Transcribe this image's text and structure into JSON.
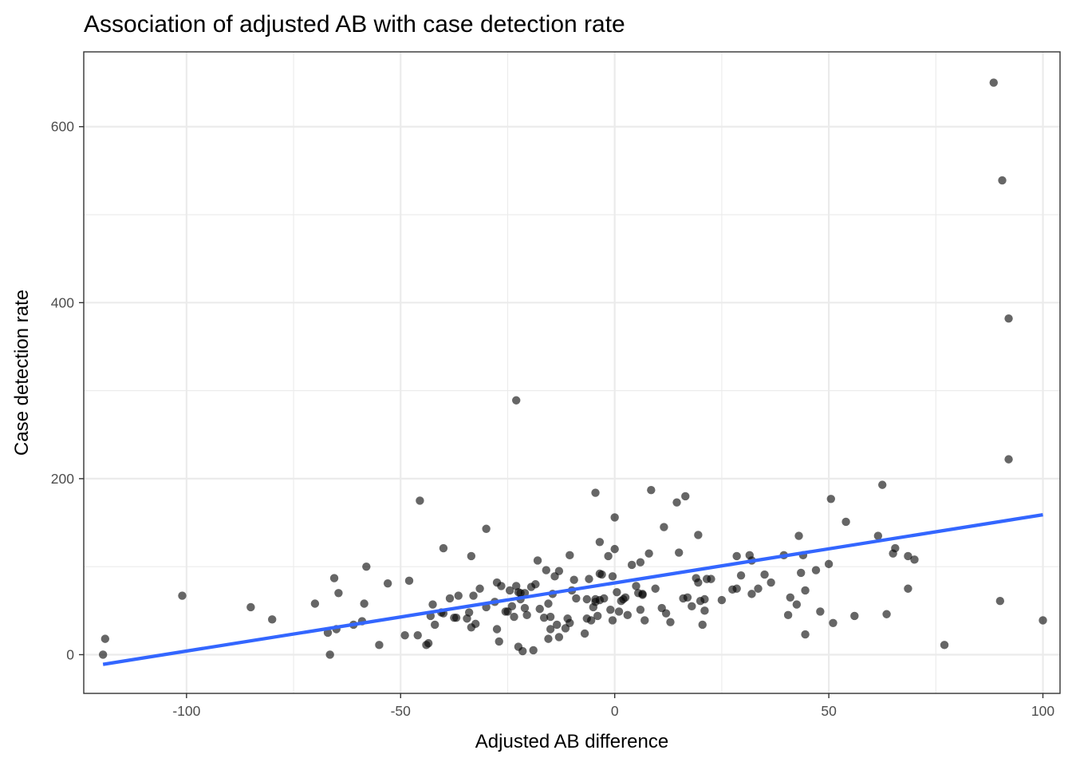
{
  "chart_data": {
    "type": "scatter",
    "title": "Association of adjusted AB with case detection rate",
    "xlabel": "Adjusted AB difference",
    "ylabel": "Case detection rate",
    "xlim": [
      -124,
      104
    ],
    "ylim": [
      -44,
      685
    ],
    "x_ticks": [
      -100,
      -50,
      0,
      50,
      100
    ],
    "x_tick_labels": [
      "-100",
      "-50",
      "0",
      "50",
      "100"
    ],
    "y_ticks": [
      0,
      200,
      400,
      600
    ],
    "y_tick_labels": [
      "0",
      "200",
      "400",
      "600"
    ],
    "grid": true,
    "legend": "none",
    "colors": {
      "points": "#000000",
      "trend": "#3366ff",
      "grid": "#ebebeb",
      "panel_border": "#333333"
    },
    "trend_line": {
      "method": "linear",
      "x": [
        -119.5,
        100
      ],
      "y": [
        -11,
        159
      ]
    },
    "points": [
      {
        "x": -119.5,
        "y": 0
      },
      {
        "x": -119,
        "y": 18
      },
      {
        "x": -101,
        "y": 67
      },
      {
        "x": -85,
        "y": 54
      },
      {
        "x": -80,
        "y": 40
      },
      {
        "x": -70,
        "y": 58
      },
      {
        "x": -67,
        "y": 25
      },
      {
        "x": -66.5,
        "y": 0
      },
      {
        "x": -65.5,
        "y": 87
      },
      {
        "x": -65,
        "y": 29
      },
      {
        "x": -64.5,
        "y": 70
      },
      {
        "x": -61,
        "y": 34
      },
      {
        "x": -59,
        "y": 38
      },
      {
        "x": -58.5,
        "y": 58
      },
      {
        "x": -58,
        "y": 100
      },
      {
        "x": -55,
        "y": 11
      },
      {
        "x": -53,
        "y": 81
      },
      {
        "x": -49,
        "y": 22
      },
      {
        "x": -48,
        "y": 84
      },
      {
        "x": -46,
        "y": 22
      },
      {
        "x": -45.5,
        "y": 175
      },
      {
        "x": -44,
        "y": 11
      },
      {
        "x": -43.5,
        "y": 13
      },
      {
        "x": -43,
        "y": 44
      },
      {
        "x": -42.5,
        "y": 57
      },
      {
        "x": -42,
        "y": 34
      },
      {
        "x": -40.5,
        "y": 48
      },
      {
        "x": -40,
        "y": 47
      },
      {
        "x": -40,
        "y": 121
      },
      {
        "x": -38.5,
        "y": 64
      },
      {
        "x": -37.5,
        "y": 42
      },
      {
        "x": -37,
        "y": 42
      },
      {
        "x": -36.5,
        "y": 67
      },
      {
        "x": -34.5,
        "y": 41
      },
      {
        "x": -34,
        "y": 48
      },
      {
        "x": -33.5,
        "y": 112
      },
      {
        "x": -33.5,
        "y": 31
      },
      {
        "x": -33,
        "y": 67
      },
      {
        "x": -32.5,
        "y": 35
      },
      {
        "x": -31.5,
        "y": 75
      },
      {
        "x": -30,
        "y": 143
      },
      {
        "x": -30,
        "y": 54
      },
      {
        "x": -28,
        "y": 60
      },
      {
        "x": -27.5,
        "y": 82
      },
      {
        "x": -27.5,
        "y": 29
      },
      {
        "x": -27,
        "y": 15
      },
      {
        "x": -26.5,
        "y": 78
      },
      {
        "x": -25.5,
        "y": 49
      },
      {
        "x": -25,
        "y": 49
      },
      {
        "x": -24.5,
        "y": 73
      },
      {
        "x": -24,
        "y": 55
      },
      {
        "x": -23.5,
        "y": 43
      },
      {
        "x": -23,
        "y": 78
      },
      {
        "x": -23,
        "y": 289
      },
      {
        "x": -22.5,
        "y": 71
      },
      {
        "x": -22.5,
        "y": 9
      },
      {
        "x": -22,
        "y": 63
      },
      {
        "x": -22,
        "y": 70
      },
      {
        "x": -21.5,
        "y": 4
      },
      {
        "x": -21,
        "y": 70
      },
      {
        "x": -21,
        "y": 53
      },
      {
        "x": -20.5,
        "y": 45
      },
      {
        "x": -19.5,
        "y": 77
      },
      {
        "x": -19,
        "y": 5
      },
      {
        "x": -18.5,
        "y": 80
      },
      {
        "x": -18,
        "y": 107
      },
      {
        "x": -17.5,
        "y": 52
      },
      {
        "x": -16.5,
        "y": 42
      },
      {
        "x": -16,
        "y": 96
      },
      {
        "x": -15.5,
        "y": 18
      },
      {
        "x": -15.5,
        "y": 58
      },
      {
        "x": -15,
        "y": 29
      },
      {
        "x": -15,
        "y": 43
      },
      {
        "x": -14.5,
        "y": 69
      },
      {
        "x": -14,
        "y": 89
      },
      {
        "x": -13.5,
        "y": 34
      },
      {
        "x": -13,
        "y": 20
      },
      {
        "x": -13,
        "y": 95
      },
      {
        "x": -11.5,
        "y": 30
      },
      {
        "x": -11,
        "y": 41
      },
      {
        "x": -10.5,
        "y": 36
      },
      {
        "x": -10.5,
        "y": 113
      },
      {
        "x": -10,
        "y": 73
      },
      {
        "x": -9.5,
        "y": 85
      },
      {
        "x": -9,
        "y": 64
      },
      {
        "x": -7,
        "y": 24
      },
      {
        "x": -6.5,
        "y": 41
      },
      {
        "x": -6.5,
        "y": 63
      },
      {
        "x": -6,
        "y": 86
      },
      {
        "x": -5.5,
        "y": 39
      },
      {
        "x": -5,
        "y": 54
      },
      {
        "x": -4.5,
        "y": 60
      },
      {
        "x": -4.5,
        "y": 63
      },
      {
        "x": -4.5,
        "y": 184
      },
      {
        "x": -4,
        "y": 44
      },
      {
        "x": -3.5,
        "y": 62
      },
      {
        "x": -3.5,
        "y": 92
      },
      {
        "x": -3.5,
        "y": 128
      },
      {
        "x": -3,
        "y": 91
      },
      {
        "x": -2.5,
        "y": 64
      },
      {
        "x": -1.5,
        "y": 112
      },
      {
        "x": -1,
        "y": 51
      },
      {
        "x": -0.5,
        "y": 89
      },
      {
        "x": -0.5,
        "y": 39
      },
      {
        "x": 0,
        "y": 156
      },
      {
        "x": 0,
        "y": 120
      },
      {
        "x": 0.5,
        "y": 71
      },
      {
        "x": 1,
        "y": 49
      },
      {
        "x": 1.5,
        "y": 61
      },
      {
        "x": 2,
        "y": 63
      },
      {
        "x": 2.5,
        "y": 65
      },
      {
        "x": 3,
        "y": 45
      },
      {
        "x": 4,
        "y": 102
      },
      {
        "x": 5,
        "y": 78
      },
      {
        "x": 5.5,
        "y": 70
      },
      {
        "x": 6,
        "y": 51
      },
      {
        "x": 6,
        "y": 105
      },
      {
        "x": 6.5,
        "y": 69
      },
      {
        "x": 6.5,
        "y": 68
      },
      {
        "x": 7,
        "y": 39
      },
      {
        "x": 8,
        "y": 115
      },
      {
        "x": 8.5,
        "y": 187
      },
      {
        "x": 9.5,
        "y": 75
      },
      {
        "x": 11,
        "y": 53
      },
      {
        "x": 11.5,
        "y": 145
      },
      {
        "x": 12,
        "y": 47
      },
      {
        "x": 13,
        "y": 37
      },
      {
        "x": 14.5,
        "y": 173
      },
      {
        "x": 15,
        "y": 116
      },
      {
        "x": 16,
        "y": 64
      },
      {
        "x": 16.5,
        "y": 180
      },
      {
        "x": 17,
        "y": 65
      },
      {
        "x": 18,
        "y": 55
      },
      {
        "x": 19,
        "y": 87
      },
      {
        "x": 19.5,
        "y": 136
      },
      {
        "x": 19.5,
        "y": 82
      },
      {
        "x": 20,
        "y": 61
      },
      {
        "x": 20.5,
        "y": 34
      },
      {
        "x": 21,
        "y": 63
      },
      {
        "x": 21,
        "y": 50
      },
      {
        "x": 21.5,
        "y": 86
      },
      {
        "x": 22.5,
        "y": 86
      },
      {
        "x": 25,
        "y": 62
      },
      {
        "x": 27.5,
        "y": 74
      },
      {
        "x": 28.5,
        "y": 75
      },
      {
        "x": 28.5,
        "y": 112
      },
      {
        "x": 29.5,
        "y": 90
      },
      {
        "x": 31.5,
        "y": 113
      },
      {
        "x": 32,
        "y": 69
      },
      {
        "x": 32,
        "y": 107
      },
      {
        "x": 33.5,
        "y": 75
      },
      {
        "x": 35,
        "y": 91
      },
      {
        "x": 36.5,
        "y": 82
      },
      {
        "x": 39.5,
        "y": 113
      },
      {
        "x": 40.5,
        "y": 45
      },
      {
        "x": 41,
        "y": 65
      },
      {
        "x": 42.5,
        "y": 57
      },
      {
        "x": 43,
        "y": 135
      },
      {
        "x": 43.5,
        "y": 93
      },
      {
        "x": 44,
        "y": 113
      },
      {
        "x": 44.5,
        "y": 23
      },
      {
        "x": 44.5,
        "y": 73
      },
      {
        "x": 47,
        "y": 96
      },
      {
        "x": 48,
        "y": 49
      },
      {
        "x": 50,
        "y": 103
      },
      {
        "x": 50.5,
        "y": 177
      },
      {
        "x": 51,
        "y": 36
      },
      {
        "x": 54,
        "y": 151
      },
      {
        "x": 56,
        "y": 44
      },
      {
        "x": 61.5,
        "y": 135
      },
      {
        "x": 62.5,
        "y": 193
      },
      {
        "x": 63.5,
        "y": 46
      },
      {
        "x": 65,
        "y": 115
      },
      {
        "x": 65.5,
        "y": 121
      },
      {
        "x": 68.5,
        "y": 112
      },
      {
        "x": 68.5,
        "y": 75
      },
      {
        "x": 70,
        "y": 108
      },
      {
        "x": 77,
        "y": 11
      },
      {
        "x": 88.5,
        "y": 650
      },
      {
        "x": 90,
        "y": 61
      },
      {
        "x": 90.5,
        "y": 539
      },
      {
        "x": 92,
        "y": 382
      },
      {
        "x": 92,
        "y": 222
      },
      {
        "x": 100,
        "y": 39
      }
    ]
  }
}
